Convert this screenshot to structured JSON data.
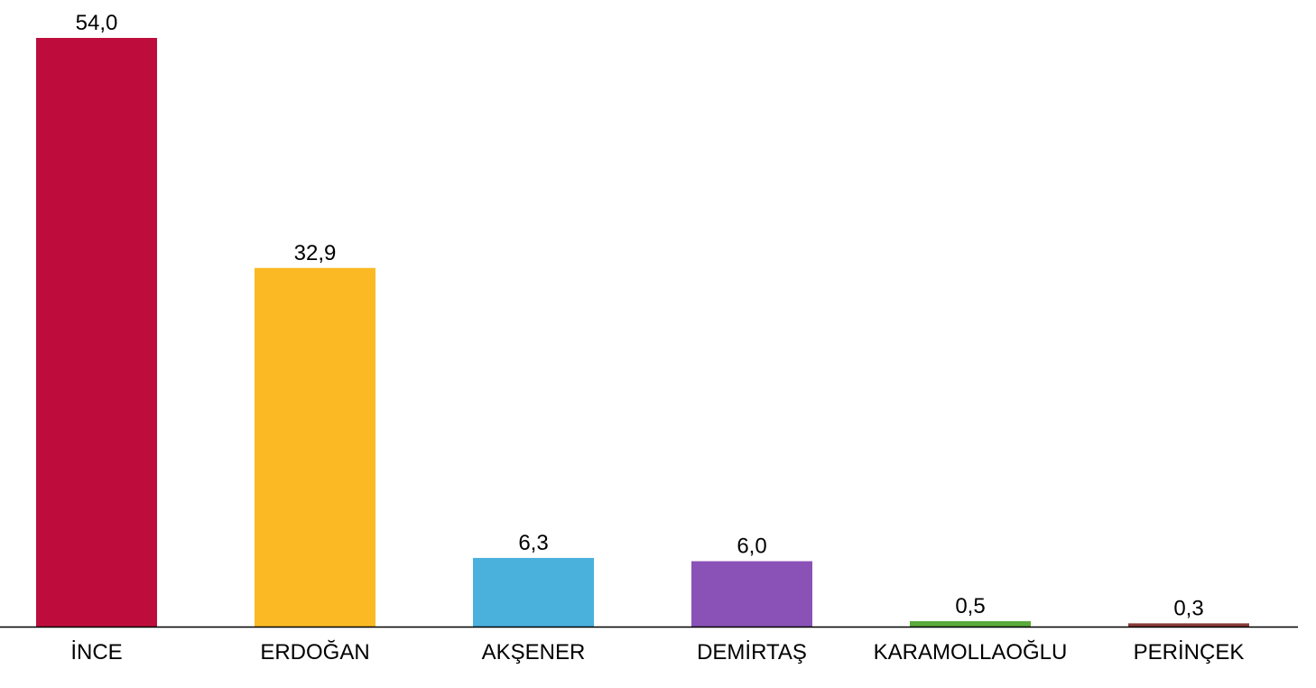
{
  "chart_data": {
    "type": "bar",
    "categories": [
      "İNCE",
      "ERDOĞAN",
      "AKŞENER",
      "DEMİRTAŞ",
      "KARAMOLLAOĞLU",
      "PERİNÇEK"
    ],
    "values": [
      54.0,
      32.9,
      6.3,
      6.0,
      0.5,
      0.3
    ],
    "value_labels": [
      "54,0",
      "32,9",
      "6,3",
      "6,0",
      "0,5",
      "0,3"
    ],
    "colors": [
      "#be0d3c",
      "#fbba24",
      "#4ab0dc",
      "#8a52b6",
      "#5aaa3c",
      "#8a3a3a"
    ],
    "title": "",
    "xlabel": "",
    "ylabel": "",
    "ylim": [
      0,
      54.0
    ],
    "grid": false,
    "axis_color": "#000000"
  }
}
